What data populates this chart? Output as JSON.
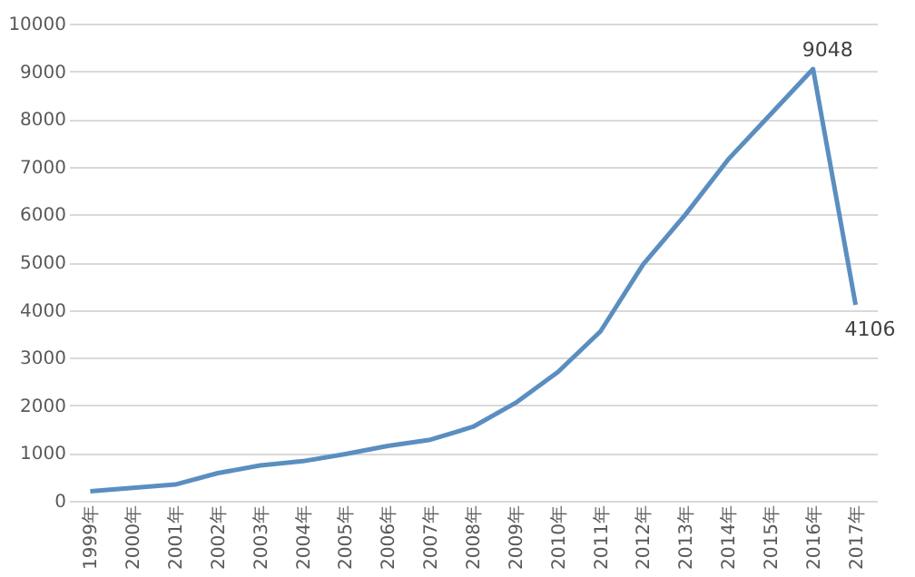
{
  "chart_data": {
    "type": "line",
    "categories": [
      "1999年",
      "2000年",
      "2001年",
      "2002年",
      "2003年",
      "2004年",
      "2005年",
      "2006年",
      "2007年",
      "2008年",
      "2009年",
      "2010年",
      "2011年",
      "2012年",
      "2013年",
      "2014年",
      "2015年",
      "2016年",
      "2017年"
    ],
    "series": [
      {
        "color": "#5b8ec0",
        "values": [
          200,
          270,
          340,
          580,
          740,
          830,
          980,
          1150,
          1280,
          1550,
          2050,
          2700,
          3550,
          4950,
          6000,
          7150,
          8100,
          9048,
          4106
        ],
        "value_labels": [
          null,
          null,
          null,
          null,
          null,
          null,
          null,
          null,
          null,
          null,
          null,
          null,
          null,
          null,
          null,
          null,
          null,
          "9048",
          "4106"
        ]
      }
    ],
    "ylim": [
      0,
      10000
    ],
    "yticks": [
      0,
      1000,
      2000,
      3000,
      4000,
      5000,
      6000,
      7000,
      8000,
      9000,
      10000
    ],
    "grid": "y",
    "line_style": "solid"
  }
}
